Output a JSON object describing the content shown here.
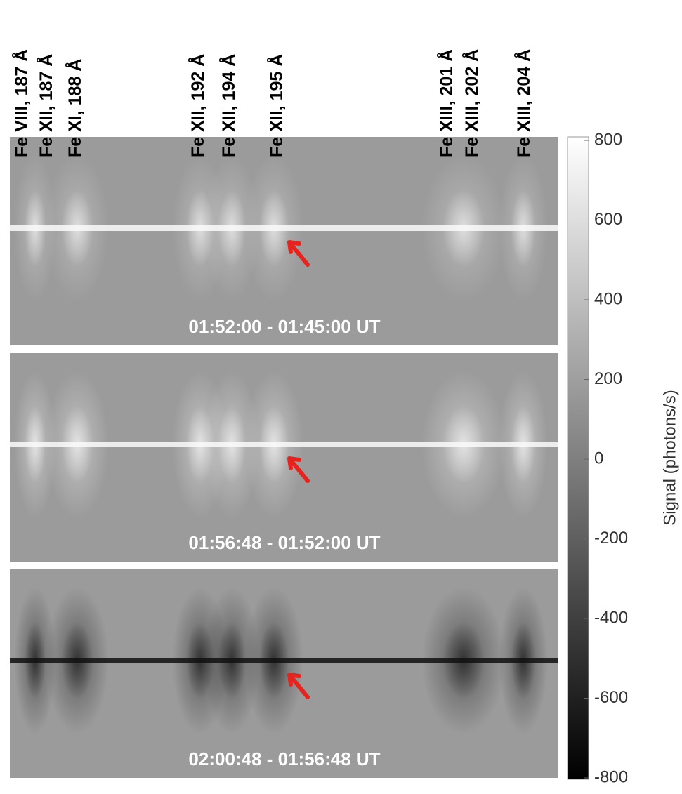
{
  "line_labels": [
    "Fe VIII, 187 Å",
    "Fe XII, 187 Å",
    "Fe XI, 188 Å",
    "Fe XII, 192 Å",
    "Fe XII, 194 Å",
    "Fe XII, 195 Å",
    "Fe XIII, 201 Å",
    "Fe XIII, 202 Å",
    "Fe XIII, 204 Å"
  ],
  "panels": [
    {
      "label": "01:52:00 - 01:45:00 UT"
    },
    {
      "label": "01:56:48 - 01:52:00 UT"
    },
    {
      "label": "02:00:48 - 01:56:48 UT"
    }
  ],
  "colorbar": {
    "label": "Signal (photons/s)",
    "lim": [
      -800,
      800
    ],
    "ticks": [
      -800,
      -600,
      -400,
      -200,
      0,
      200,
      400,
      600,
      800
    ]
  }
}
